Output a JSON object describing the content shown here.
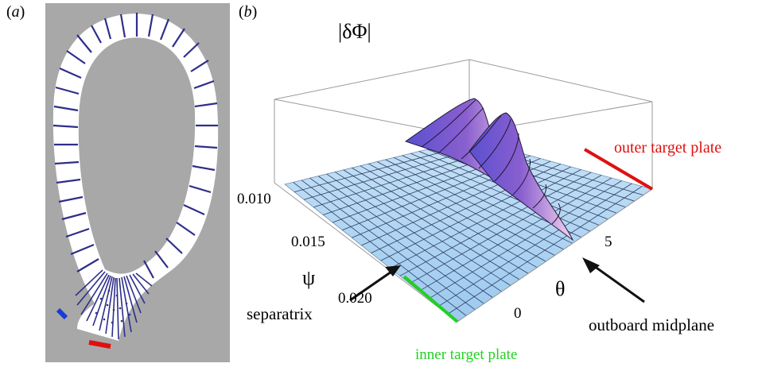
{
  "panel_a": {
    "label_open": "(",
    "label_letter": "a",
    "label_close": ")"
  },
  "panel_b": {
    "label_open": "(",
    "label_letter": "b",
    "label_close": ")",
    "z_label": "|δΦ|",
    "psi_axis_label": "ψ",
    "theta_axis_label": "θ",
    "psi_ticks": [
      "0.010",
      "0.015",
      "0.020"
    ],
    "theta_ticks": [
      "0",
      "5"
    ],
    "annotations": {
      "outer_target_plate": "outer target plate",
      "inner_target_plate": "inner target plate",
      "separatrix": "separatrix",
      "outboard_midplane": "outboard midplane"
    }
  },
  "colors": {
    "outer_target": "#e01010",
    "inner_target": "#22d022",
    "mesh_line": "#2e2e8a",
    "background_gray": "#a8a8a8",
    "surface_base": "#a9cff0",
    "peak_purple": "#8a5fcf"
  }
}
